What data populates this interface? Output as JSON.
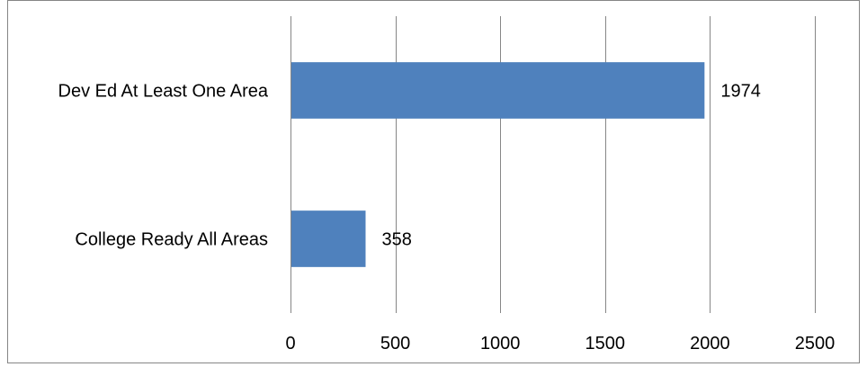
{
  "chart_data": {
    "type": "bar",
    "orientation": "horizontal",
    "title": "",
    "xlabel": "",
    "ylabel": "",
    "categories": [
      "Dev Ed At Least One Area",
      "College Ready All Areas"
    ],
    "values": [
      1974,
      358
    ],
    "data_labels": [
      "1974",
      "358"
    ],
    "xlim": [
      0,
      2500
    ],
    "x_ticks": [
      0,
      500,
      1000,
      1500,
      2000,
      2500
    ],
    "x_tick_labels": [
      "0",
      "500",
      "1000",
      "1500",
      "2000",
      "2500"
    ],
    "grid": "vertical",
    "legend": "none",
    "colors": {
      "bar": "#4F81BD",
      "grid": "#868686",
      "border": "#868686",
      "text": "#000000"
    }
  }
}
